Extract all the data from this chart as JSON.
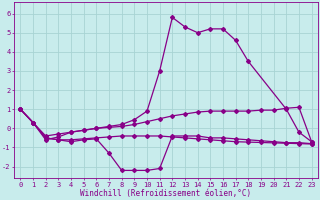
{
  "bg_color": "#c8ecec",
  "grid_color": "#a8d4d4",
  "line_color": "#880088",
  "marker": "D",
  "markersize": 2.0,
  "linewidth": 0.9,
  "xlim": [
    -0.5,
    23.5
  ],
  "ylim": [
    -2.6,
    6.6
  ],
  "xlabel": "Windchill (Refroidissement éolien,°C)",
  "xlabel_fontsize": 5.5,
  "tick_fontsize": 5.0,
  "xtick_vals": [
    0,
    1,
    2,
    3,
    4,
    5,
    6,
    7,
    8,
    9,
    10,
    11,
    12,
    13,
    14,
    15,
    16,
    17,
    18,
    19,
    20,
    21,
    22,
    23
  ],
  "ytick_vals": [
    -2,
    -1,
    0,
    1,
    2,
    3,
    4,
    5,
    6
  ],
  "lines": [
    {
      "x": [
        0,
        1,
        2,
        3,
        4,
        5,
        6,
        7,
        8,
        9,
        10,
        11,
        12,
        13,
        14,
        15,
        16,
        17,
        18,
        21,
        22,
        23
      ],
      "y": [
        1,
        0.3,
        -0.6,
        -0.45,
        -0.2,
        -0.1,
        0.0,
        0.1,
        0.2,
        0.45,
        0.9,
        3.0,
        5.8,
        5.3,
        5.0,
        5.2,
        5.2,
        4.6,
        3.5,
        1.0,
        -0.2,
        -0.7
      ]
    },
    {
      "x": [
        0,
        1,
        2,
        3,
        4,
        5,
        6,
        7,
        8,
        9,
        10,
        11,
        12,
        13,
        14,
        15,
        16,
        17,
        18,
        19,
        20,
        21,
        22,
        23
      ],
      "y": [
        1,
        0.3,
        -0.4,
        -0.3,
        -0.2,
        -0.1,
        0.0,
        0.05,
        0.1,
        0.2,
        0.35,
        0.5,
        0.65,
        0.75,
        0.85,
        0.9,
        0.9,
        0.9,
        0.9,
        0.95,
        0.95,
        1.05,
        1.1,
        -0.7
      ]
    },
    {
      "x": [
        0,
        1,
        2,
        3,
        4,
        5,
        6,
        7,
        8,
        9,
        10,
        11,
        12,
        13,
        14,
        15,
        16,
        17,
        18,
        19,
        20,
        21,
        22,
        23
      ],
      "y": [
        1,
        0.3,
        -0.5,
        -0.6,
        -0.7,
        -0.6,
        -0.55,
        -1.3,
        -2.2,
        -2.2,
        -2.2,
        -2.1,
        -0.4,
        -0.4,
        -0.4,
        -0.5,
        -0.5,
        -0.55,
        -0.6,
        -0.65,
        -0.7,
        -0.75,
        -0.75,
        -0.8
      ]
    },
    {
      "x": [
        0,
        1,
        2,
        3,
        4,
        5,
        6,
        7,
        8,
        9,
        10,
        11,
        12,
        13,
        14,
        15,
        16,
        17,
        18,
        19,
        20,
        21,
        22,
        23
      ],
      "y": [
        1,
        0.3,
        -0.5,
        -0.6,
        -0.6,
        -0.55,
        -0.5,
        -0.45,
        -0.4,
        -0.4,
        -0.4,
        -0.4,
        -0.45,
        -0.5,
        -0.55,
        -0.6,
        -0.65,
        -0.7,
        -0.72,
        -0.74,
        -0.76,
        -0.78,
        -0.8,
        -0.82
      ]
    }
  ]
}
